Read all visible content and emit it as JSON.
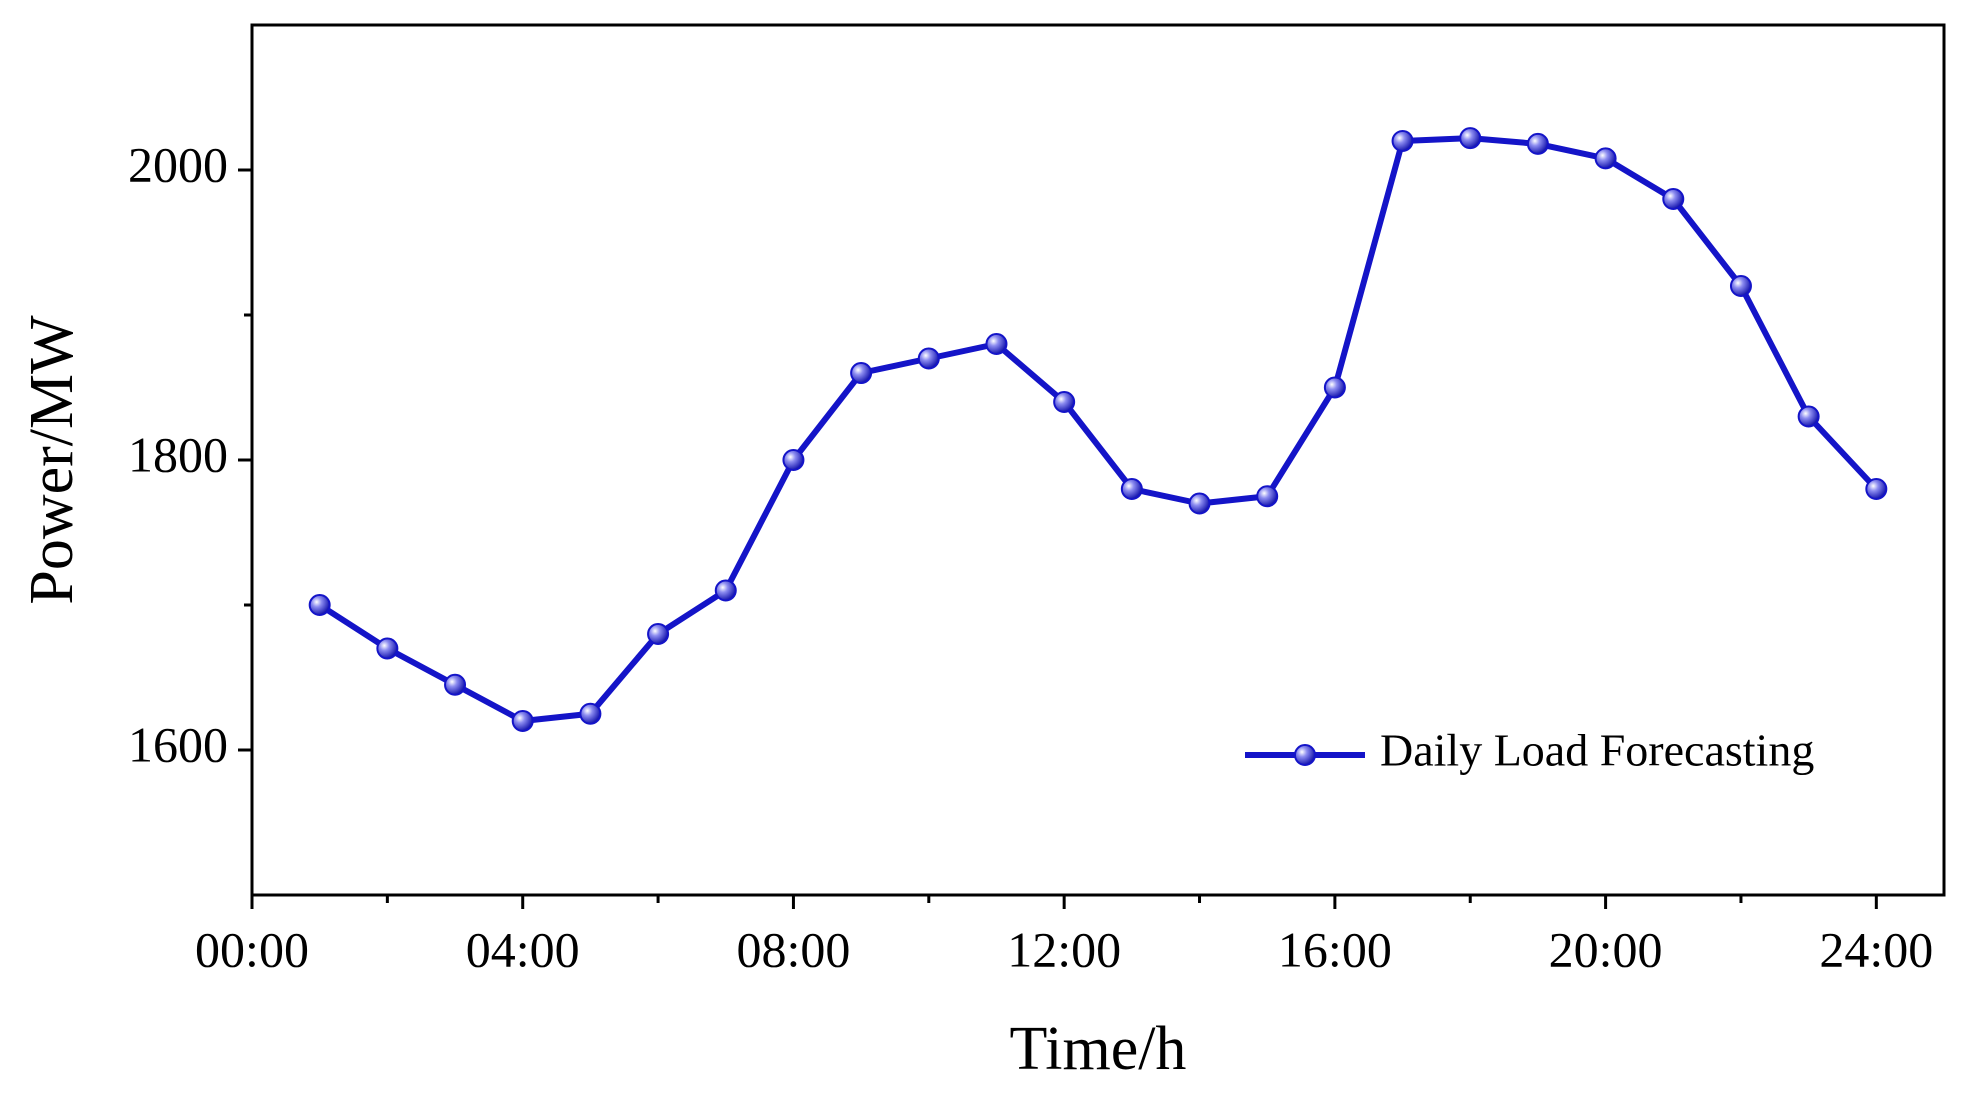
{
  "chart_data": {
    "type": "line",
    "x_label": "Time/h",
    "y_label": "Power/MW",
    "x": [
      1,
      2,
      3,
      4,
      5,
      6,
      7,
      8,
      9,
      10,
      11,
      12,
      13,
      14,
      15,
      16,
      17,
      18,
      19,
      20,
      21,
      22,
      23,
      24
    ],
    "series": [
      {
        "name": "Daily Load Forecasting",
        "color": "#1414c8",
        "values": [
          1700,
          1670,
          1645,
          1620,
          1625,
          1680,
          1710,
          1800,
          1860,
          1870,
          1880,
          1840,
          1780,
          1770,
          1775,
          1850,
          2020,
          2022,
          2018,
          2008,
          1980,
          1920,
          1830,
          1780
        ]
      }
    ],
    "xlim": [
      0,
      25
    ],
    "xticks": [
      {
        "value": 0,
        "label": "00:00"
      },
      {
        "value": 4,
        "label": "04:00"
      },
      {
        "value": 8,
        "label": "08:00"
      },
      {
        "value": 12,
        "label": "12:00"
      },
      {
        "value": 16,
        "label": "16:00"
      },
      {
        "value": 20,
        "label": "20:00"
      },
      {
        "value": 24,
        "label": "24:00"
      }
    ],
    "xminorticks": [
      2,
      6,
      10,
      14,
      18,
      22
    ],
    "ylim": [
      1500,
      2100
    ],
    "yticks": [
      1600,
      1800,
      2000
    ],
    "yminorticks": [
      1700,
      1900
    ],
    "grid": false,
    "legend": "lower right"
  }
}
